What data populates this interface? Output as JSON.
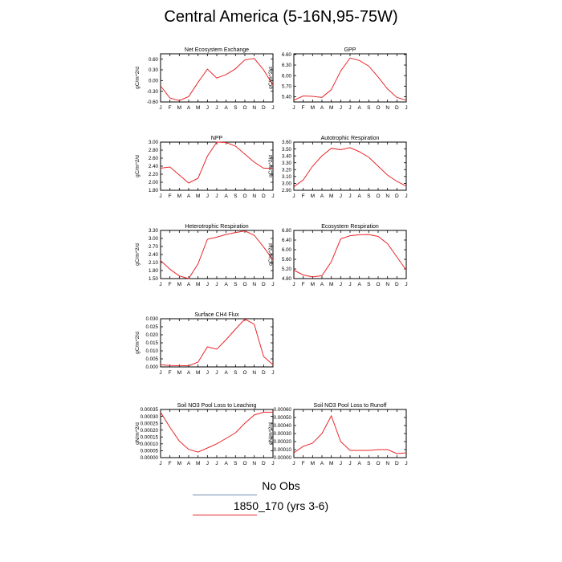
{
  "title": "Central America (5-16N,95-75W)",
  "legend": {
    "obs_label": "No Obs",
    "obs_color": "#6f8fb0",
    "model_label": "1850_170 (yrs 3-6)",
    "model_color": "#e8262a"
  },
  "chart_data": [
    {
      "type": "line",
      "title": "Net Ecosystem Exchange",
      "ylabel": "gC/m^2/d",
      "categories": [
        "J",
        "F",
        "M",
        "A",
        "M",
        "J",
        "J",
        "A",
        "S",
        "O",
        "N",
        "D",
        "J"
      ],
      "yticks": [
        "0.60",
        "0.30",
        "0.00",
        "-0.30",
        "-0.60"
      ],
      "ylim": [
        -0.6,
        0.75
      ],
      "series": [
        {
          "values": [
            -0.15,
            -0.49,
            -0.56,
            -0.45,
            -0.05,
            0.32,
            0.07,
            0.17,
            0.33,
            0.58,
            0.62,
            0.3,
            -0.13
          ]
        }
      ]
    },
    {
      "type": "line",
      "title": "GPP",
      "ylabel": "gC/m^2/d",
      "categories": [
        "J",
        "F",
        "M",
        "A",
        "M",
        "J",
        "J",
        "A",
        "S",
        "O",
        "N",
        "D",
        "J"
      ],
      "yticks": [
        "6.60",
        "6.30",
        "6.00",
        "5.70",
        "5.40"
      ],
      "ylim": [
        5.25,
        6.62
      ],
      "series": [
        {
          "values": [
            5.3,
            5.42,
            5.41,
            5.38,
            5.6,
            6.13,
            6.5,
            6.43,
            6.27,
            5.96,
            5.62,
            5.38,
            5.3
          ]
        }
      ]
    },
    {
      "type": "line",
      "title": "NPP",
      "ylabel": "gC/m^2/d",
      "categories": [
        "J",
        "F",
        "M",
        "A",
        "M",
        "J",
        "J",
        "A",
        "S",
        "O",
        "N",
        "D",
        "J"
      ],
      "yticks": [
        "3.00",
        "2.80",
        "2.60",
        "2.40",
        "2.20",
        "2.00",
        "1.80"
      ],
      "ylim": [
        1.8,
        3.0
      ],
      "series": [
        {
          "values": [
            2.35,
            2.38,
            2.18,
            1.98,
            2.1,
            2.65,
            3.0,
            2.99,
            2.9,
            2.7,
            2.5,
            2.35,
            2.35
          ]
        }
      ]
    },
    {
      "type": "line",
      "title": "Autotrophic Respiration",
      "ylabel": "gC/m^2/d",
      "categories": [
        "J",
        "F",
        "M",
        "A",
        "M",
        "J",
        "J",
        "A",
        "S",
        "O",
        "N",
        "D",
        "J"
      ],
      "yticks": [
        "3.60",
        "3.50",
        "3.40",
        "3.30",
        "3.20",
        "3.10",
        "3.00",
        "2.90"
      ],
      "ylim": [
        2.9,
        3.6
      ],
      "series": [
        {
          "values": [
            2.95,
            3.05,
            3.25,
            3.4,
            3.51,
            3.49,
            3.52,
            3.46,
            3.38,
            3.25,
            3.12,
            3.03,
            2.96
          ]
        }
      ]
    },
    {
      "type": "line",
      "title": "Heterotrophic Respiration",
      "ylabel": "gC/m^2/d",
      "categories": [
        "J",
        "F",
        "M",
        "A",
        "M",
        "J",
        "J",
        "A",
        "S",
        "O",
        "N",
        "D",
        "J"
      ],
      "yticks": [
        "3.30",
        "3.00",
        "2.70",
        "2.40",
        "2.10",
        "1.80",
        "1.50"
      ],
      "ylim": [
        1.5,
        3.3
      ],
      "series": [
        {
          "values": [
            2.18,
            1.85,
            1.6,
            1.5,
            2.05,
            2.97,
            3.05,
            3.15,
            3.22,
            3.28,
            3.12,
            2.68,
            2.2
          ]
        }
      ]
    },
    {
      "type": "line",
      "title": "Ecosystem Respiration",
      "ylabel": "gC/m^2/d",
      "categories": [
        "J",
        "F",
        "M",
        "A",
        "M",
        "J",
        "J",
        "A",
        "S",
        "O",
        "N",
        "D",
        "J"
      ],
      "yticks": [
        "6.80",
        "6.40",
        "6.00",
        "5.60",
        "5.20",
        "4.80"
      ],
      "ylim": [
        4.8,
        6.8
      ],
      "series": [
        {
          "values": [
            5.15,
            4.95,
            4.87,
            4.92,
            5.5,
            6.45,
            6.58,
            6.62,
            6.63,
            6.55,
            6.25,
            5.7,
            5.15
          ]
        }
      ]
    },
    {
      "type": "line",
      "title": "Surface CH4 Flux",
      "ylabel": "gC/m^2/d",
      "categories": [
        "J",
        "F",
        "M",
        "A",
        "M",
        "J",
        "J",
        "A",
        "S",
        "O",
        "N",
        "D",
        "J"
      ],
      "yticks": [
        "0.030",
        "0.025",
        "0.020",
        "0.015",
        "0.010",
        "0.005",
        "0.000"
      ],
      "ylim": [
        0.0,
        0.03
      ],
      "series": [
        {
          "values": [
            0.0013,
            0.0009,
            0.0008,
            0.0007,
            0.003,
            0.0125,
            0.011,
            0.017,
            0.0235,
            0.0298,
            0.0265,
            0.0065,
            0.0013
          ]
        }
      ]
    },
    {
      "type": "line",
      "title": "Soil NO3 Pool Loss to Leaching",
      "ylabel": "gN/m^2/d",
      "categories": [
        "J",
        "F",
        "M",
        "A",
        "M",
        "J",
        "J",
        "A",
        "S",
        "O",
        "N",
        "D",
        "J"
      ],
      "yticks": [
        "0.00035",
        "0.00030",
        "0.00025",
        "0.00020",
        "0.00015",
        "0.00010",
        "0.00005",
        "0.00000"
      ],
      "ylim": [
        0.0,
        0.00035
      ],
      "series": [
        {
          "values": [
            0.00033,
            0.00022,
            0.00012,
            6e-05,
            4e-05,
            7e-05,
            0.0001,
            0.00014,
            0.00018,
            0.00025,
            0.00031,
            0.00033,
            0.00033
          ]
        }
      ]
    },
    {
      "type": "line",
      "title": "Soil NO3 Pool Loss to Runoff",
      "ylabel": "gN/m^2/d",
      "categories": [
        "J",
        "F",
        "M",
        "A",
        "M",
        "J",
        "J",
        "A",
        "S",
        "O",
        "N",
        "D",
        "J"
      ],
      "yticks": [
        "0.00060",
        "0.00050",
        "0.00040",
        "0.00030",
        "0.00020",
        "0.00010",
        "0.00000"
      ],
      "ylim": [
        0.0,
        0.0006
      ],
      "series": [
        {
          "values": [
            6e-05,
            0.00014,
            0.00018,
            0.0003,
            0.00052,
            0.0002,
            9e-05,
            9e-05,
            9e-05,
            0.0001,
            0.0001,
            5e-05,
            6e-05
          ]
        }
      ]
    }
  ]
}
